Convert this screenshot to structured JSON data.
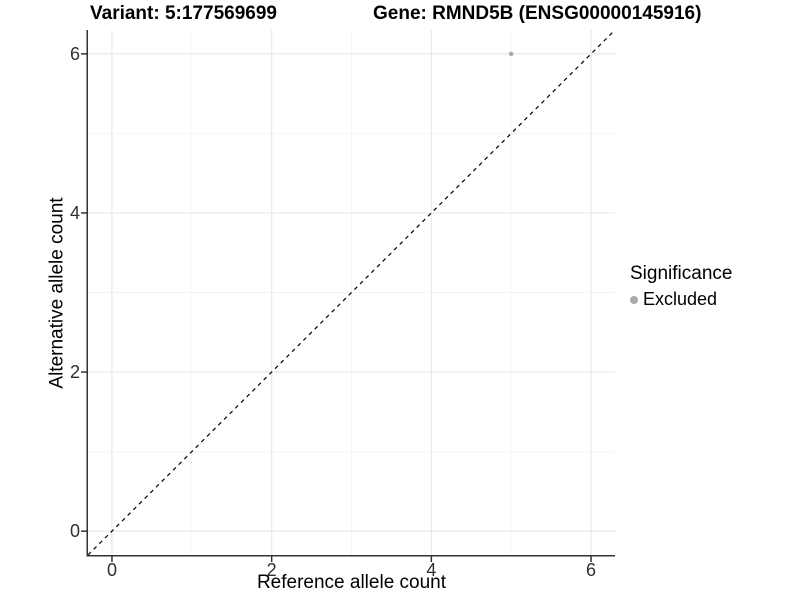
{
  "titles": {
    "variant": "Variant: 5:177569699",
    "gene": "Gene: RMND5B (ENSG00000145916)"
  },
  "legend": {
    "title": "Significance",
    "items": [
      {
        "label": "Excluded",
        "color": "#aaaaaa"
      }
    ]
  },
  "chart_data": {
    "type": "scatter",
    "title": "Variant: 5:177569699  /  Gene: RMND5B (ENSG00000145916)",
    "xlabel": "Reference allele count",
    "ylabel": "Alternative allele count",
    "xlim": [
      -0.3,
      6.3
    ],
    "ylim": [
      -0.3,
      6.3
    ],
    "x_ticks": [
      0,
      2,
      4,
      6
    ],
    "y_ticks": [
      0,
      2,
      4,
      6
    ],
    "x_minor_gridlines": [
      1,
      3,
      5
    ],
    "y_minor_gridlines": [
      1,
      3,
      5
    ],
    "grid": "major+minor",
    "legend_position": "right",
    "series": [
      {
        "name": "Excluded",
        "color": "#aaaaaa",
        "point_radius": 2.3,
        "points": [
          {
            "x": 5,
            "y": 6
          }
        ]
      }
    ],
    "reference_line": {
      "kind": "identity y=x",
      "style": "dashed",
      "color": "#000000"
    }
  },
  "colors": {
    "background": "#ffffff",
    "axis_line": "#333333",
    "tick_mark": "#333333",
    "major_gridline": "#e9e9e9",
    "minor_gridline": "#f4f4f4",
    "point": "#aaaaaa",
    "title_text": "#000000",
    "tick_text": "#303030"
  }
}
